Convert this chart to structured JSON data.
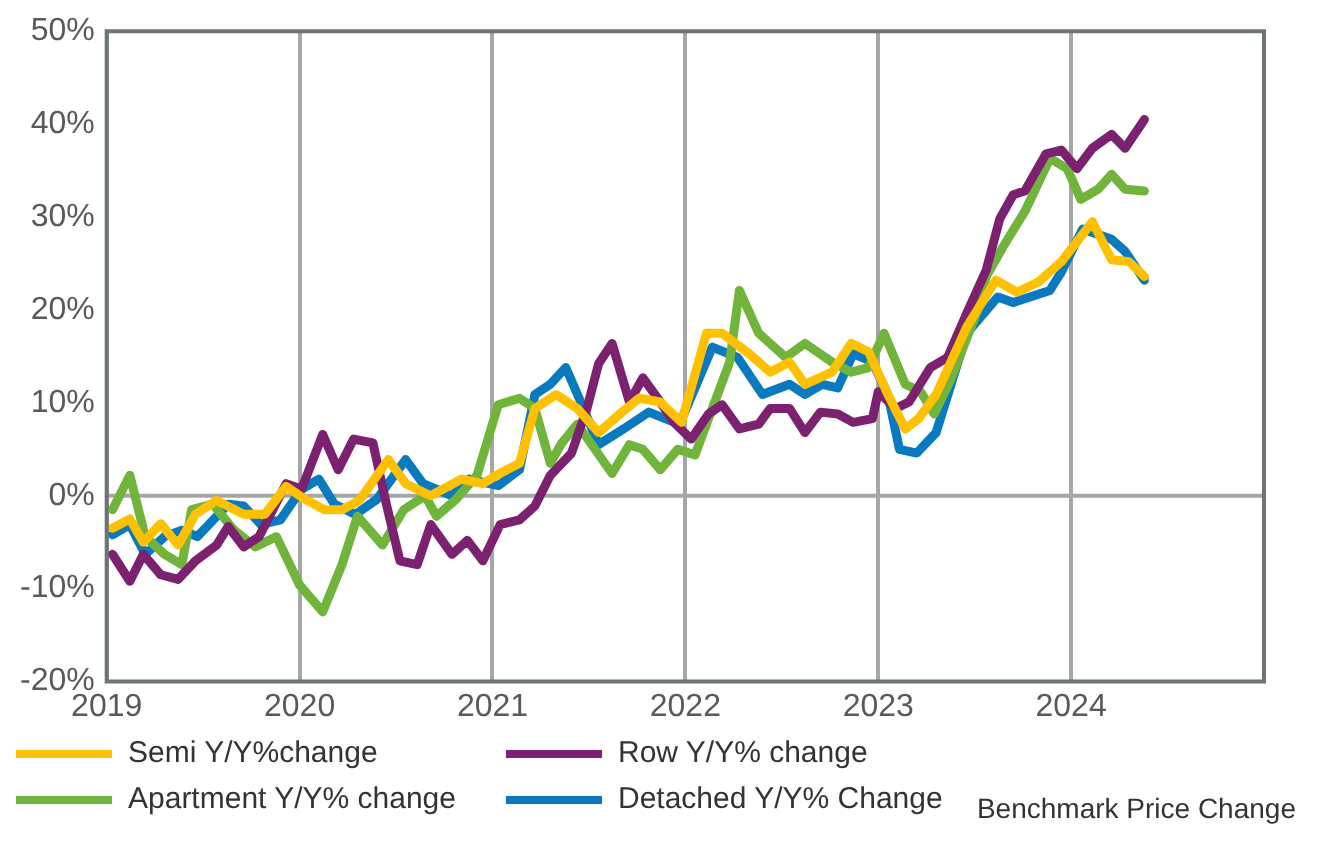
{
  "chart_data": {
    "type": "line",
    "xlim": [
      2019,
      2025
    ],
    "xticks": [
      2019,
      2020,
      2021,
      2022,
      2023,
      2024,
      {
        "value": 2025,
        "label": null
      }
    ],
    "ylim": [
      -20,
      50
    ],
    "yticks": [
      {
        "value": -20,
        "label": "-20%"
      },
      {
        "value": -10,
        "label": "-10%"
      },
      {
        "value": 0,
        "label": "0%"
      },
      {
        "value": 10,
        "label": "10%"
      },
      {
        "value": 20,
        "label": "20%"
      },
      {
        "value": 30,
        "label": "30%"
      },
      {
        "value": 40,
        "label": "40%"
      },
      {
        "value": 50,
        "label": "50%"
      }
    ],
    "grid": "x",
    "ref_lines": [
      {
        "axis": "y",
        "value": 0,
        "color": "#a6a6a6"
      }
    ],
    "legend": "bottom left",
    "marker": "none",
    "line_style": "solid",
    "annotations": [
      "Benchmark Price Change"
    ],
    "series": [
      {
        "name": "Semi Y/Y%change",
        "color": "#ffc000",
        "x": [
          2019.03,
          2019.12,
          2019.19,
          2019.28,
          2019.37,
          2019.46,
          2019.57,
          2019.71,
          2019.82,
          2019.93,
          2020.03,
          2020.13,
          2020.22,
          2020.31,
          2020.46,
          2020.55,
          2020.68,
          2020.84,
          2020.95,
          2021.02,
          2021.14,
          2021.22,
          2021.33,
          2021.44,
          2021.55,
          2021.66,
          2021.76,
          2021.87,
          2021.98,
          2022.11,
          2022.19,
          2022.33,
          2022.44,
          2022.54,
          2022.62,
          2022.76,
          2022.86,
          2022.95,
          2023.05,
          2023.14,
          2023.21,
          2023.3,
          2023.46,
          2023.61,
          2023.72,
          2023.83,
          2023.95,
          2024.11,
          2024.21,
          2024.3,
          2024.38
        ],
        "values": [
          -3.5,
          -2.5,
          -5.0,
          -3.0,
          -5.3,
          -2.0,
          -0.5,
          -2.0,
          -2.0,
          1.0,
          -0.4,
          -1.5,
          -1.5,
          -0.5,
          3.9,
          1.3,
          0.0,
          1.8,
          1.3,
          2.2,
          3.5,
          9.4,
          10.9,
          9.4,
          6.8,
          8.8,
          10.5,
          10.1,
          7.9,
          17.5,
          17.5,
          15.3,
          13.3,
          14.4,
          12.0,
          13.3,
          16.4,
          15.5,
          10.9,
          7.2,
          8.3,
          10.9,
          18.2,
          23.2,
          21.9,
          23.0,
          25.2,
          29.5,
          25.4,
          25.2,
          23.6
        ]
      },
      {
        "name": "Row Y/Y% change",
        "color": "#7b2170",
        "x": [
          2019.03,
          2019.12,
          2019.19,
          2019.28,
          2019.37,
          2019.46,
          2019.57,
          2019.63,
          2019.71,
          2019.79,
          2019.93,
          2020.01,
          2020.12,
          2020.2,
          2020.28,
          2020.38,
          2020.45,
          2020.52,
          2020.61,
          2020.68,
          2020.79,
          2020.87,
          2020.95,
          2021.04,
          2021.14,
          2021.22,
          2021.3,
          2021.41,
          2021.49,
          2021.55,
          2021.62,
          2021.71,
          2021.78,
          2021.87,
          2021.94,
          2022.03,
          2022.12,
          2022.19,
          2022.28,
          2022.38,
          2022.44,
          2022.54,
          2022.62,
          2022.7,
          2022.79,
          2022.87,
          2022.97,
          2023.0,
          2023.09,
          2023.16,
          2023.27,
          2023.36,
          2023.46,
          2023.56,
          2023.63,
          2023.7,
          2023.76,
          2023.87,
          2023.95,
          2024.03,
          2024.11,
          2024.21,
          2024.28,
          2024.38
        ],
        "values": [
          -6.3,
          -9.2,
          -6.3,
          -8.5,
          -9.0,
          -7.0,
          -5.3,
          -3.3,
          -5.5,
          -4.4,
          1.3,
          0.7,
          6.6,
          2.8,
          6.1,
          5.7,
          -0.9,
          -7.0,
          -7.4,
          -3.1,
          -6.3,
          -4.8,
          -7.0,
          -3.1,
          -2.6,
          -1.1,
          2.2,
          4.6,
          9.4,
          14.2,
          16.4,
          10.1,
          12.7,
          10.1,
          7.9,
          6.1,
          8.8,
          9.8,
          7.2,
          7.7,
          9.4,
          9.4,
          6.8,
          9.0,
          8.8,
          7.9,
          8.3,
          11.2,
          9.4,
          10.1,
          13.8,
          14.9,
          19.7,
          24.3,
          29.8,
          32.4,
          32.8,
          36.8,
          37.2,
          35.2,
          37.4,
          38.9,
          37.4,
          40.5
        ]
      },
      {
        "name": "Apartment Y/Y% change",
        "color": "#70b43c",
        "x": [
          2019.03,
          2019.12,
          2019.2,
          2019.3,
          2019.39,
          2019.44,
          2019.55,
          2019.66,
          2019.77,
          2019.88,
          2020.0,
          2020.12,
          2020.22,
          2020.3,
          2020.43,
          2020.54,
          2020.65,
          2020.71,
          2020.81,
          2020.92,
          2021.03,
          2021.14,
          2021.22,
          2021.3,
          2021.36,
          2021.44,
          2021.62,
          2021.71,
          2021.78,
          2021.87,
          2021.96,
          2022.05,
          2022.14,
          2022.23,
          2022.28,
          2022.38,
          2022.52,
          2022.62,
          2022.76,
          2022.86,
          2022.95,
          2023.03,
          2023.14,
          2023.22,
          2023.29,
          2023.38,
          2023.51,
          2023.56,
          2023.65,
          2023.76,
          2023.89,
          2023.98,
          2024.05,
          2024.14,
          2024.21,
          2024.28,
          2024.38
        ],
        "values": [
          -1.5,
          2.2,
          -4.4,
          -6.3,
          -7.4,
          -1.5,
          -0.9,
          -3.7,
          -5.5,
          -4.4,
          -9.6,
          -12.5,
          -7.4,
          -2.2,
          -5.3,
          -1.5,
          0.0,
          -2.2,
          -0.4,
          2.2,
          9.8,
          10.5,
          9.4,
          3.5,
          5.7,
          7.7,
          2.4,
          5.5,
          5.0,
          2.8,
          5.0,
          4.4,
          9.4,
          14.4,
          22.1,
          17.5,
          14.9,
          16.4,
          14.4,
          13.3,
          13.8,
          17.5,
          12.0,
          11.2,
          8.8,
          12.7,
          19.7,
          23.6,
          26.9,
          30.6,
          36.3,
          35.2,
          31.9,
          33.0,
          34.6,
          33.0,
          32.8
        ]
      },
      {
        "name": "Detached Y/Y% Change",
        "color": "#0a7ac0",
        "x": [
          2019.03,
          2019.12,
          2019.2,
          2019.3,
          2019.39,
          2019.47,
          2019.63,
          2019.71,
          2019.8,
          2019.9,
          2020.01,
          2020.1,
          2020.18,
          2020.29,
          2020.4,
          2020.55,
          2020.64,
          2020.79,
          2020.88,
          2021.03,
          2021.14,
          2021.22,
          2021.3,
          2021.38,
          2021.47,
          2021.55,
          2021.68,
          2021.81,
          2021.97,
          2022.14,
          2022.27,
          2022.4,
          2022.54,
          2022.62,
          2022.71,
          2022.79,
          2022.87,
          2022.97,
          2023.05,
          2023.11,
          2023.2,
          2023.3,
          2023.46,
          2023.62,
          2023.7,
          2023.89,
          2023.95,
          2024.06,
          2024.21,
          2024.28,
          2024.38
        ],
        "values": [
          -4.2,
          -3.1,
          -6.3,
          -4.4,
          -3.7,
          -4.4,
          -0.9,
          -1.1,
          -3.1,
          -2.6,
          0.7,
          1.8,
          -0.9,
          -2.0,
          -0.4,
          3.9,
          1.3,
          0.0,
          1.8,
          1.1,
          2.8,
          10.9,
          12.0,
          13.8,
          9.5,
          5.5,
          7.2,
          9.0,
          7.7,
          16.0,
          14.9,
          10.9,
          12.0,
          10.9,
          12.0,
          11.6,
          15.3,
          14.4,
          10.9,
          5.0,
          4.6,
          6.8,
          17.5,
          21.4,
          20.8,
          22.1,
          24.1,
          28.7,
          27.6,
          26.3,
          23.2
        ]
      }
    ]
  }
}
